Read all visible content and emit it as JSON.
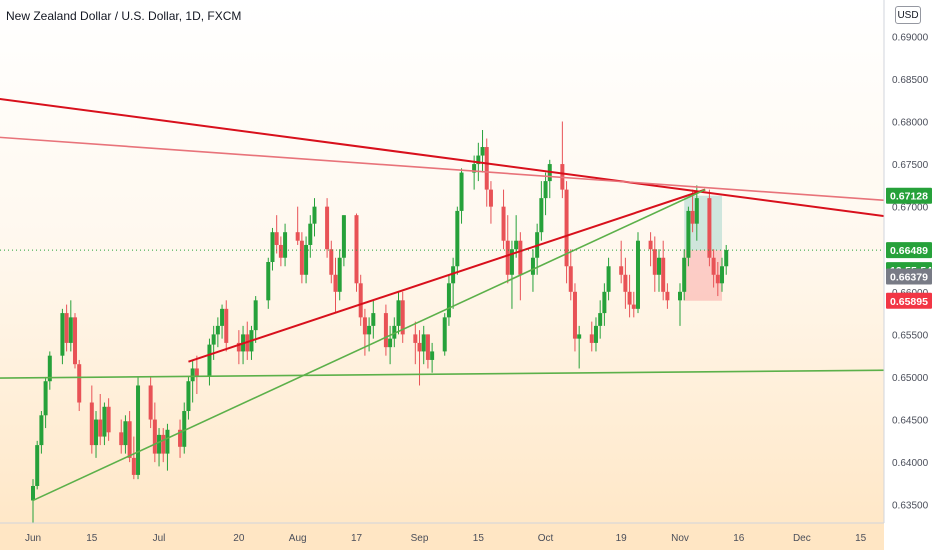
{
  "header": {
    "title": "New Zealand Dollar / U.S. Dollar, 1D, FXCM",
    "currency_button": "USD"
  },
  "colors": {
    "up": "#26a13a",
    "down": "#e85256",
    "trendline_red": "#d8101c",
    "trendline_pink": "#e8737a",
    "trendline_green": "#5cb04a"
  },
  "chart_data": {
    "type": "candlestick",
    "title": "New Zealand Dollar / U.S. Dollar, 1D, FXCM",
    "symbol": "NZDUSD",
    "ylim": [
      0.6325,
      0.6918
    ],
    "yticks": [
      0.635,
      0.64,
      0.645,
      0.65,
      0.655,
      0.66,
      0.665,
      0.67,
      0.675,
      0.68,
      0.685,
      0.69
    ],
    "xticks": [
      "Jun",
      "15",
      "Jul",
      "20",
      "Aug",
      "17",
      "Sep",
      "15",
      "Oct",
      "19",
      "Nov",
      "16",
      "Dec",
      "15"
    ],
    "xtick_dates": [
      "2020-06-01",
      "2020-06-15",
      "2020-07-01",
      "2020-07-20",
      "2020-08-03",
      "2020-08-17",
      "2020-09-01",
      "2020-09-15",
      "2020-10-01",
      "2020-10-19",
      "2020-11-02",
      "2020-11-16",
      "2020-12-01",
      "2020-12-15"
    ],
    "price_labels": [
      {
        "value": "0.67128",
        "kind": "target",
        "color": "#26a13a"
      },
      {
        "value": "0.66489",
        "kind": "entry",
        "color": "#26a13a"
      },
      {
        "value": "13:55:54",
        "kind": "countdown",
        "color": "#26a13a"
      },
      {
        "value": "0.66379",
        "kind": "last",
        "color": "#787b86"
      },
      {
        "value": "0.65895",
        "kind": "stop",
        "color": "#f23645"
      }
    ],
    "position": {
      "side": "long",
      "entry": 0.66489,
      "target": 0.67128,
      "stop": 0.65895,
      "start": "2020-11-03",
      "end": "2020-11-12"
    },
    "trendlines": [
      {
        "color": "red",
        "from": [
          "2020-05-08",
          0.6837
        ],
        "to": [
          "2020-12-22",
          0.6688
        ]
      },
      {
        "color": "pink",
        "from": [
          "2020-05-08",
          0.6787
        ],
        "to": [
          "2020-12-22",
          0.6707
        ]
      },
      {
        "color": "red",
        "from": [
          "2020-07-08",
          0.6518
        ],
        "to": [
          "2020-11-08",
          0.672
        ]
      },
      {
        "color": "green",
        "from": [
          "2020-06-01",
          0.6355
        ],
        "to": [
          "2020-11-08",
          0.672
        ]
      },
      {
        "color": "green",
        "from": [
          "2020-05-08",
          0.6498
        ],
        "to": [
          "2020-12-22",
          0.6508
        ]
      }
    ],
    "candles": [
      [
        0.6355,
        0.638,
        0.632,
        0.6372
      ],
      [
        0.6372,
        0.6425,
        0.6368,
        0.642
      ],
      [
        0.642,
        0.646,
        0.641,
        0.6455
      ],
      [
        0.6455,
        0.65,
        0.644,
        0.6495
      ],
      [
        0.6495,
        0.653,
        0.6485,
        0.6525
      ],
      [
        0.6525,
        0.658,
        0.6515,
        0.6575
      ],
      [
        0.6575,
        0.6585,
        0.653,
        0.654
      ],
      [
        0.654,
        0.659,
        0.653,
        0.657
      ],
      [
        0.657,
        0.6575,
        0.651,
        0.6515
      ],
      [
        0.6515,
        0.652,
        0.646,
        0.647
      ],
      [
        0.647,
        0.649,
        0.641,
        0.642
      ],
      [
        0.642,
        0.646,
        0.6405,
        0.645
      ],
      [
        0.645,
        0.648,
        0.642,
        0.643
      ],
      [
        0.643,
        0.647,
        0.642,
        0.6465
      ],
      [
        0.6465,
        0.6475,
        0.6425,
        0.6435
      ],
      [
        0.6435,
        0.645,
        0.641,
        0.642
      ],
      [
        0.642,
        0.6455,
        0.641,
        0.6448
      ],
      [
        0.6448,
        0.646,
        0.64,
        0.6405
      ],
      [
        0.6405,
        0.643,
        0.638,
        0.6385
      ],
      [
        0.6385,
        0.65,
        0.638,
        0.649
      ],
      [
        0.649,
        0.65,
        0.644,
        0.645
      ],
      [
        0.645,
        0.647,
        0.64,
        0.641
      ],
      [
        0.641,
        0.644,
        0.6395,
        0.6432
      ],
      [
        0.6432,
        0.644,
        0.64,
        0.641
      ],
      [
        0.641,
        0.6445,
        0.639,
        0.6438
      ],
      [
        0.6438,
        0.645,
        0.6405,
        0.6418
      ],
      [
        0.6418,
        0.647,
        0.641,
        0.646
      ],
      [
        0.646,
        0.65,
        0.645,
        0.6495
      ],
      [
        0.6495,
        0.652,
        0.647,
        0.651
      ],
      [
        0.651,
        0.6525,
        0.648,
        0.65
      ],
      [
        0.65,
        0.6545,
        0.649,
        0.6538
      ],
      [
        0.6538,
        0.656,
        0.652,
        0.655
      ],
      [
        0.655,
        0.657,
        0.6535,
        0.656
      ],
      [
        0.656,
        0.6585,
        0.6545,
        0.658
      ],
      [
        0.658,
        0.659,
        0.653,
        0.654
      ],
      [
        0.654,
        0.6555,
        0.6515,
        0.653
      ],
      [
        0.653,
        0.656,
        0.6515,
        0.655
      ],
      [
        0.655,
        0.6565,
        0.652,
        0.653
      ],
      [
        0.653,
        0.656,
        0.652,
        0.6555
      ],
      [
        0.6555,
        0.6595,
        0.654,
        0.659
      ],
      [
        0.659,
        0.664,
        0.658,
        0.6635
      ],
      [
        0.6635,
        0.6675,
        0.6625,
        0.667
      ],
      [
        0.667,
        0.669,
        0.6645,
        0.6655
      ],
      [
        0.6655,
        0.6665,
        0.663,
        0.664
      ],
      [
        0.664,
        0.668,
        0.663,
        0.667
      ],
      [
        0.667,
        0.67,
        0.6655,
        0.666
      ],
      [
        0.666,
        0.667,
        0.661,
        0.662
      ],
      [
        0.662,
        0.6665,
        0.661,
        0.6655
      ],
      [
        0.6655,
        0.669,
        0.664,
        0.668
      ],
      [
        0.668,
        0.671,
        0.6665,
        0.67
      ],
      [
        0.67,
        0.671,
        0.664,
        0.665
      ],
      [
        0.665,
        0.666,
        0.661,
        0.662
      ],
      [
        0.662,
        0.664,
        0.6575,
        0.66
      ],
      [
        0.66,
        0.665,
        0.659,
        0.664
      ],
      [
        0.664,
        0.669,
        0.663,
        0.669
      ],
      [
        0.669,
        0.6692,
        0.66,
        0.661
      ],
      [
        0.661,
        0.662,
        0.656,
        0.657
      ],
      [
        0.657,
        0.658,
        0.6525,
        0.655
      ],
      [
        0.655,
        0.657,
        0.653,
        0.656
      ],
      [
        0.656,
        0.659,
        0.6545,
        0.6575
      ],
      [
        0.6575,
        0.6585,
        0.6525,
        0.6535
      ],
      [
        0.6535,
        0.656,
        0.6515,
        0.6545
      ],
      [
        0.6545,
        0.657,
        0.6535,
        0.656
      ],
      [
        0.656,
        0.66,
        0.655,
        0.659
      ],
      [
        0.659,
        0.66,
        0.654,
        0.655
      ],
      [
        0.655,
        0.6565,
        0.6515,
        0.654
      ],
      [
        0.654,
        0.6555,
        0.649,
        0.653
      ],
      [
        0.653,
        0.656,
        0.6515,
        0.655
      ],
      [
        0.655,
        0.655,
        0.651,
        0.652
      ],
      [
        0.652,
        0.654,
        0.6505,
        0.653
      ],
      [
        0.653,
        0.6575,
        0.6525,
        0.657
      ],
      [
        0.657,
        0.662,
        0.656,
        0.661
      ],
      [
        0.661,
        0.664,
        0.658,
        0.663
      ],
      [
        0.663,
        0.67,
        0.662,
        0.6695
      ],
      [
        0.6695,
        0.6745,
        0.668,
        0.674
      ],
      [
        0.674,
        0.676,
        0.672,
        0.675
      ],
      [
        0.675,
        0.6775,
        0.673,
        0.676
      ],
      [
        0.676,
        0.679,
        0.674,
        0.677
      ],
      [
        0.677,
        0.678,
        0.67,
        0.672
      ],
      [
        0.672,
        0.673,
        0.668,
        0.67
      ],
      [
        0.67,
        0.672,
        0.665,
        0.666
      ],
      [
        0.666,
        0.669,
        0.661,
        0.662
      ],
      [
        0.662,
        0.666,
        0.658,
        0.665
      ],
      [
        0.665,
        0.669,
        0.664,
        0.666
      ],
      [
        0.666,
        0.667,
        0.659,
        0.662
      ],
      [
        0.662,
        0.665,
        0.66,
        0.664
      ],
      [
        0.664,
        0.668,
        0.662,
        0.667
      ],
      [
        0.667,
        0.673,
        0.666,
        0.671
      ],
      [
        0.671,
        0.674,
        0.669,
        0.673
      ],
      [
        0.673,
        0.6755,
        0.671,
        0.675
      ],
      [
        0.675,
        0.68,
        0.671,
        0.672
      ],
      [
        0.672,
        0.673,
        0.661,
        0.663
      ],
      [
        0.663,
        0.665,
        0.659,
        0.66
      ],
      [
        0.66,
        0.661,
        0.653,
        0.6545
      ],
      [
        0.6545,
        0.656,
        0.651,
        0.655
      ],
      [
        0.655,
        0.6565,
        0.653,
        0.654
      ],
      [
        0.654,
        0.657,
        0.653,
        0.656
      ],
      [
        0.656,
        0.659,
        0.6545,
        0.6575
      ],
      [
        0.6575,
        0.661,
        0.656,
        0.66
      ],
      [
        0.66,
        0.664,
        0.659,
        0.663
      ],
      [
        0.663,
        0.666,
        0.661,
        0.662
      ],
      [
        0.662,
        0.664,
        0.658,
        0.66
      ],
      [
        0.66,
        0.662,
        0.657,
        0.6585
      ],
      [
        0.6585,
        0.66,
        0.657,
        0.658
      ],
      [
        0.658,
        0.667,
        0.6575,
        0.666
      ],
      [
        0.666,
        0.667,
        0.663,
        0.665
      ],
      [
        0.665,
        0.6665,
        0.66,
        0.662
      ],
      [
        0.662,
        0.665,
        0.66,
        0.664
      ],
      [
        0.664,
        0.666,
        0.659,
        0.66
      ],
      [
        0.66,
        0.661,
        0.658,
        0.659
      ],
      [
        0.659,
        0.661,
        0.656,
        0.66
      ],
      [
        0.66,
        0.665,
        0.659,
        0.664
      ],
      [
        0.664,
        0.67,
        0.663,
        0.6695
      ],
      [
        0.6695,
        0.672,
        0.667,
        0.668
      ],
      [
        0.668,
        0.6725,
        0.666,
        0.671
      ],
      [
        0.671,
        0.672,
        0.663,
        0.664
      ],
      [
        0.664,
        0.665,
        0.6605,
        0.662
      ],
      [
        0.662,
        0.6635,
        0.6595,
        0.661
      ],
      [
        0.661,
        0.664,
        0.66,
        0.663
      ],
      [
        0.663,
        0.6655,
        0.662,
        0.6649
      ]
    ]
  }
}
